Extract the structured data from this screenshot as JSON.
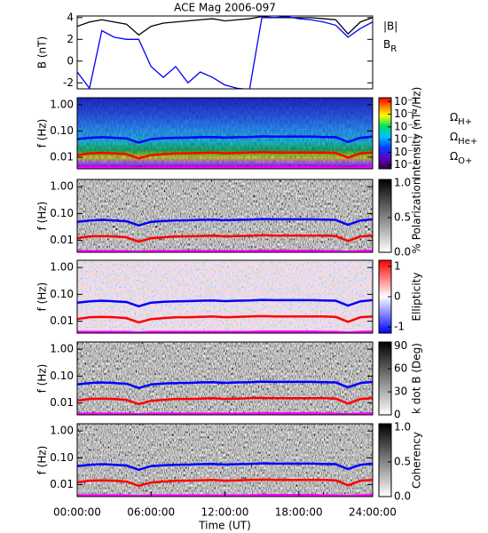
{
  "chart_data": [
    {
      "type": "line",
      "title": "ACE Mag 2006-097",
      "ylabel": "B (nT)",
      "xlim": [
        0,
        24
      ],
      "ylim": [
        -2.55,
        4.15
      ],
      "yticks": [
        -2,
        0,
        2,
        4
      ],
      "x": [
        0,
        1,
        2,
        3,
        4,
        5,
        6,
        7,
        8,
        9,
        10,
        11,
        12,
        13,
        14,
        15,
        16,
        17,
        18,
        19,
        20,
        21,
        22,
        23,
        24
      ],
      "series": [
        {
          "name": "|B|",
          "color": "#000000",
          "values": [
            3.2,
            3.6,
            3.8,
            3.6,
            3.4,
            2.4,
            3.2,
            3.5,
            3.6,
            3.7,
            3.8,
            3.9,
            3.7,
            3.8,
            3.9,
            4.1,
            4.0,
            4.0,
            4.0,
            4.0,
            3.9,
            3.8,
            2.5,
            3.6,
            4.0
          ]
        },
        {
          "name": "BR",
          "color": "#0000ff",
          "values": [
            -1.0,
            -2.5,
            2.8,
            2.2,
            2.0,
            2.0,
            -0.5,
            -1.5,
            -0.5,
            -2.0,
            -1.0,
            -1.5,
            -2.2,
            -2.5,
            -2.6,
            4.0,
            4.0,
            4.1,
            3.9,
            3.8,
            3.6,
            3.3,
            2.2,
            3.0,
            3.6
          ]
        }
      ]
    },
    {
      "type": "spectrogram",
      "ylabel": "f (Hz)",
      "xlim": [
        0,
        24
      ],
      "ylim": [
        0.0036,
        1.86
      ],
      "log": true,
      "yticks": [
        {
          "value": 1,
          "label": "1.00"
        },
        {
          "value": 0.1,
          "label": "0.10"
        },
        {
          "value": 0.01,
          "label": "0.01"
        }
      ],
      "colorbar": {
        "label": "Intensity (nT²/Hz)",
        "colormap": "rainbow",
        "log": true,
        "lim": [
          5e-07,
          0.2
        ],
        "ticks": [
          {
            "value": 0.1,
            "label": "10⁻¹"
          },
          {
            "value": 0.01,
            "label": "10⁻²"
          },
          {
            "value": 0.001,
            "label": "10⁻³"
          },
          {
            "value": 0.0001,
            "label": "10⁻⁴"
          },
          {
            "value": 1e-05,
            "label": "10⁻⁵"
          },
          {
            "value": 1e-06,
            "label": "10⁻⁶"
          }
        ]
      },
      "x": [
        0,
        1,
        2,
        3,
        4,
        5,
        6,
        7,
        8,
        9,
        10,
        11,
        12,
        13,
        14,
        15,
        16,
        17,
        18,
        19,
        20,
        21,
        22,
        23,
        24
      ],
      "series": [
        {
          "name": "ΩH+",
          "color": "#0000ff",
          "values": [
            0.049,
            0.055,
            0.058,
            0.055,
            0.052,
            0.036,
            0.049,
            0.053,
            0.055,
            0.056,
            0.058,
            0.059,
            0.056,
            0.058,
            0.059,
            0.062,
            0.061,
            0.061,
            0.061,
            0.061,
            0.059,
            0.058,
            0.038,
            0.055,
            0.061
          ]
        },
        {
          "name": "ΩHe+",
          "color": "#ff0000",
          "values": [
            0.012,
            0.014,
            0.0145,
            0.014,
            0.013,
            0.009,
            0.012,
            0.013,
            0.014,
            0.014,
            0.0145,
            0.015,
            0.014,
            0.0145,
            0.015,
            0.0155,
            0.015,
            0.015,
            0.015,
            0.015,
            0.015,
            0.0145,
            0.0095,
            0.014,
            0.015
          ]
        },
        {
          "name": "ΩO+",
          "color": "#ff00ff",
          "values": [
            0.004,
            0.004,
            0.004,
            0.004,
            0.004,
            0.0038,
            0.004,
            0.004,
            0.004,
            0.004,
            0.004,
            0.004,
            0.004,
            0.004,
            0.004,
            0.0041,
            0.0041,
            0.0041,
            0.0041,
            0.0041,
            0.004,
            0.004,
            0.0038,
            0.004,
            0.0041
          ]
        }
      ]
    },
    {
      "type": "spectrogram",
      "ylabel": "f (Hz)",
      "xlim": [
        0,
        24
      ],
      "ylim": [
        0.0036,
        1.86
      ],
      "log": true,
      "yticks": [
        {
          "value": 1,
          "label": "1.00"
        },
        {
          "value": 0.1,
          "label": "0.10"
        },
        {
          "value": 0.01,
          "label": "0.01"
        }
      ],
      "colorbar": {
        "label": "% Polarization",
        "colormap": "gray",
        "lim": [
          0,
          1.05
        ],
        "ticks": [
          {
            "value": 1,
            "label": "1.0"
          },
          {
            "value": 0.5,
            "label": "0.5"
          },
          {
            "value": 0,
            "label": "0.0"
          }
        ]
      }
    },
    {
      "type": "spectrogram",
      "ylabel": "f (Hz)",
      "xlim": [
        0,
        24
      ],
      "ylim": [
        0.0036,
        1.86
      ],
      "log": true,
      "yticks": [
        {
          "value": 1,
          "label": "1.00"
        },
        {
          "value": 0.1,
          "label": "0.10"
        },
        {
          "value": 0.01,
          "label": "0.01"
        }
      ],
      "colorbar": {
        "label": "Ellipticity",
        "colormap": "redblue",
        "lim": [
          -1.2,
          1.2
        ],
        "ticks": [
          1,
          0,
          -1
        ]
      }
    },
    {
      "type": "spectrogram",
      "ylabel": "f (Hz)",
      "xlim": [
        0,
        24
      ],
      "ylim": [
        0.0036,
        1.86
      ],
      "log": true,
      "yticks": [
        {
          "value": 1,
          "label": "1.00"
        },
        {
          "value": 0.1,
          "label": "0.10"
        },
        {
          "value": 0.01,
          "label": "0.01"
        }
      ],
      "colorbar": {
        "label": "k dot B (Deg)",
        "colormap": "gray",
        "lim": [
          0,
          95
        ],
        "ticks": [
          90,
          60,
          30,
          0
        ]
      }
    },
    {
      "type": "spectrogram",
      "ylabel": "f (Hz)",
      "xlim": [
        0,
        24
      ],
      "ylim": [
        0.0036,
        1.86
      ],
      "log": true,
      "yticks": [
        {
          "value": 1,
          "label": "1.00"
        },
        {
          "value": 0.1,
          "label": "0.10"
        },
        {
          "value": 0.01,
          "label": "0.01"
        }
      ],
      "colorbar": {
        "label": "Coherency",
        "colormap": "gray",
        "lim": [
          0,
          1.05
        ],
        "ticks": [
          {
            "value": 1,
            "label": "1.0"
          },
          {
            "value": 0.5,
            "label": "0.5"
          },
          {
            "value": 0,
            "label": "0.0"
          }
        ]
      },
      "xlabel": "Time (UT)",
      "xticks": [
        {
          "value": 0,
          "label": "00:00:00"
        },
        {
          "value": 6,
          "label": "06:00:00"
        },
        {
          "value": 12,
          "label": "12:00:00"
        },
        {
          "value": 18,
          "label": "18:00:00"
        },
        {
          "value": 24,
          "label": "24:00:00"
        }
      ]
    }
  ]
}
